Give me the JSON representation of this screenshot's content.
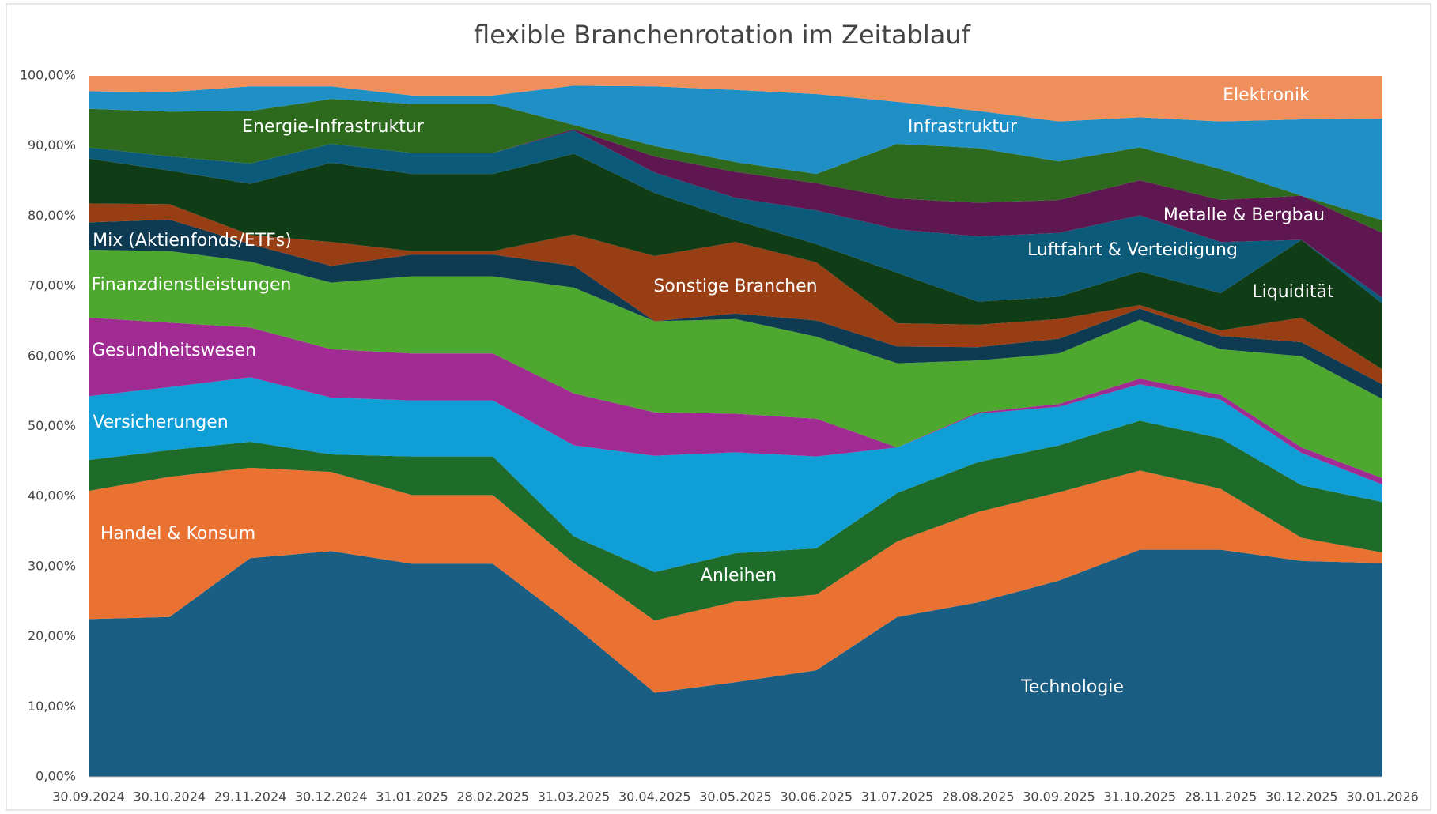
{
  "chart_data": {
    "type": "stacked_area",
    "title": "flexible Branchenrotation im Zeitablauf",
    "categories": [
      "30.09.2024",
      "30.10.2024",
      "29.11.2024",
      "30.12.2024",
      "31.01.2025",
      "28.02.2025",
      "31.03.2025",
      "30.04.2025",
      "30.05.2025",
      "30.06.2025",
      "31.07.2025",
      "28.08.2025",
      "30.09.2025",
      "31.10.2025",
      "28.11.2025",
      "30.12.2025",
      "30.01.2026"
    ],
    "ylim": [
      0,
      100
    ],
    "yticks": [
      {
        "value": 0,
        "label": "0,00%"
      },
      {
        "value": 10,
        "label": "10,00%"
      },
      {
        "value": 20,
        "label": "20,00%"
      },
      {
        "value": 30,
        "label": "30,00%"
      },
      {
        "value": 40,
        "label": "40,00%"
      },
      {
        "value": 50,
        "label": "50,00%"
      },
      {
        "value": 60,
        "label": "60,00%"
      },
      {
        "value": 70,
        "label": "70,00%"
      },
      {
        "value": 80,
        "label": "80,00%"
      },
      {
        "value": 90,
        "label": "90,00%"
      },
      {
        "value": 100,
        "label": "100,00%"
      }
    ],
    "series": [
      {
        "name": "Technologie",
        "color": "#1a5e84",
        "values": [
          22.5,
          22.8,
          31.2,
          32.2,
          30.4,
          30.4,
          21.6,
          12.0,
          13.5,
          15.2,
          22.8,
          24.9,
          28.0,
          32.4,
          32.4,
          30.8,
          30.5
        ]
      },
      {
        "name": "Handel & Konsum",
        "color": "#e97132",
        "values": [
          18.3,
          20.0,
          12.9,
          11.3,
          9.8,
          9.8,
          8.9,
          10.3,
          11.5,
          10.8,
          10.8,
          12.9,
          12.6,
          11.3,
          8.7,
          3.3,
          1.5
        ]
      },
      {
        "name": "Anleihen",
        "color": "#1e6b2a",
        "values": [
          4.4,
          3.8,
          3.7,
          2.5,
          5.5,
          5.5,
          3.8,
          6.9,
          6.9,
          6.6,
          6.9,
          7.1,
          6.7,
          7.1,
          7.2,
          7.5,
          7.2
        ]
      },
      {
        "name": "Versicherungen",
        "color": "#0f9ed5",
        "values": [
          9.1,
          9.0,
          9.2,
          8.1,
          8.0,
          8.0,
          13.0,
          16.6,
          14.4,
          13.1,
          6.5,
          6.9,
          5.5,
          5.2,
          5.5,
          4.6,
          2.5
        ]
      },
      {
        "name": "Gesundheitswesen",
        "color": "#a02b93",
        "values": [
          11.2,
          9.2,
          7.1,
          6.9,
          6.7,
          6.7,
          7.4,
          6.2,
          5.5,
          5.4,
          0,
          0.2,
          0.4,
          0.8,
          0.7,
          0.8,
          0.9
        ]
      },
      {
        "name": "Finanzdienstleistungen",
        "color": "#4ea72e",
        "values": [
          9.7,
          10.2,
          9.4,
          9.5,
          11.0,
          11.0,
          15.1,
          13.0,
          13.5,
          11.7,
          12.0,
          7.4,
          7.2,
          8.4,
          6.5,
          13.0,
          11.3
        ]
      },
      {
        "name": "Mix (Aktienfonds/ETFs)",
        "color": "#0e3a52",
        "values": [
          3.9,
          4.5,
          2.5,
          2.4,
          3.1,
          3.1,
          3.1,
          0,
          0.8,
          2.3,
          2.4,
          1.9,
          2.1,
          1.6,
          1.9,
          2.0,
          2.1
        ]
      },
      {
        "name": "Sonstige Branchen",
        "color": "#983e14",
        "values": [
          2.7,
          2.2,
          1.3,
          3.4,
          0.5,
          0.5,
          4.5,
          9.3,
          10.2,
          8.3,
          3.3,
          3.2,
          2.8,
          0.5,
          0.8,
          3.5,
          2.1
        ]
      },
      {
        "name": "Liquidität",
        "color": "#113d16",
        "values": [
          6.4,
          4.8,
          7.3,
          11.3,
          11.0,
          11.0,
          11.5,
          9.0,
          3.1,
          2.6,
          7.2,
          3.3,
          3.2,
          4.8,
          5.3,
          11.1,
          9.4
        ]
      },
      {
        "name": "Luftfahrt & Verteidigung",
        "color": "#0b5a79",
        "values": [
          1.6,
          2.0,
          2.9,
          2.7,
          3.0,
          3.0,
          3.3,
          2.9,
          3.2,
          4.8,
          6.2,
          9.3,
          9.1,
          8.0,
          7.3,
          0,
          0.8
        ]
      },
      {
        "name": "Metalle & Bergbau",
        "color": "#5e1750",
        "values": [
          0,
          0,
          0,
          0,
          0,
          0,
          0.2,
          2.3,
          3.7,
          3.9,
          4.4,
          4.8,
          4.7,
          5.0,
          6.0,
          6.3,
          9.3
        ]
      },
      {
        "name": "Energie-Infrastruktur",
        "color": "#2d6a1e",
        "values": [
          5.5,
          6.4,
          7.5,
          6.4,
          7.0,
          7.0,
          0.6,
          1.5,
          1.4,
          1.3,
          7.8,
          7.8,
          5.5,
          4.7,
          4.4,
          0,
          1.8
        ]
      },
      {
        "name": "Infrastruktur",
        "color": "#1f8fc6",
        "values": [
          2.5,
          2.8,
          3.5,
          1.8,
          1.2,
          1.2,
          5.6,
          8.5,
          10.3,
          11.4,
          6.0,
          5.3,
          5.7,
          4.3,
          6.8,
          10.9,
          14.5
        ]
      },
      {
        "name": "Elektronik",
        "color": "#ef8f5c",
        "values": [
          2.2,
          2.3,
          1.5,
          1.5,
          2.8,
          2.8,
          1.4,
          1.5,
          2.0,
          2.6,
          3.7,
          5.0,
          6.5,
          5.9,
          6.5,
          6.2,
          6.1
        ]
      }
    ]
  }
}
